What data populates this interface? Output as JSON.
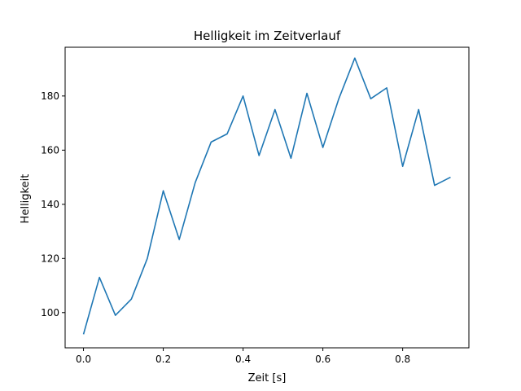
{
  "chart_data": {
    "type": "line",
    "title": "Helligkeit im Zeitverlauf",
    "xlabel": "Zeit [s]",
    "ylabel": "Helligkeit",
    "xlim": [
      -0.046,
      0.966
    ],
    "ylim": [
      87,
      198
    ],
    "xticks": [
      0.0,
      0.2,
      0.4,
      0.6,
      0.8
    ],
    "xtick_labels": [
      "0.0",
      "0.2",
      "0.4",
      "0.6",
      "0.8"
    ],
    "yticks": [
      100,
      120,
      140,
      160,
      180
    ],
    "ytick_labels": [
      "100",
      "120",
      "140",
      "160",
      "180"
    ],
    "grid": false,
    "legend": "none",
    "series": [
      {
        "color": "#1f77b4",
        "x": [
          0.0,
          0.04,
          0.08,
          0.12,
          0.16,
          0.2,
          0.24,
          0.28,
          0.32,
          0.36,
          0.4,
          0.44,
          0.48,
          0.52,
          0.56,
          0.6,
          0.64,
          0.68,
          0.72,
          0.76,
          0.8,
          0.84,
          0.88,
          0.92
        ],
        "y": [
          92,
          113,
          99,
          105,
          120,
          145,
          127,
          148,
          163,
          166,
          180,
          158,
          175,
          157,
          181,
          161,
          179,
          194,
          179,
          183,
          154,
          175,
          147,
          150
        ]
      }
    ]
  }
}
